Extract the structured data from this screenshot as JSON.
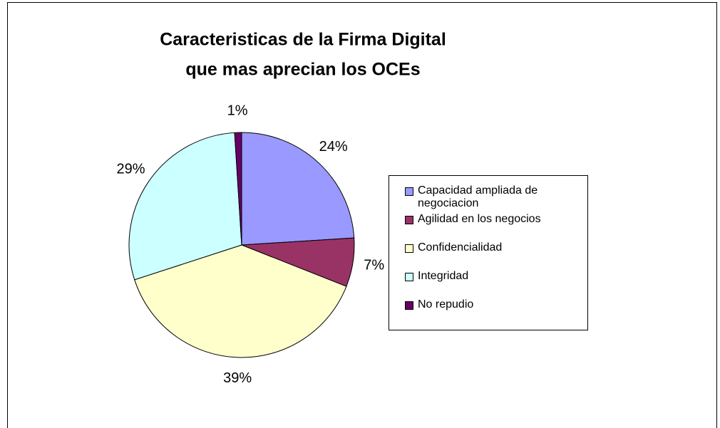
{
  "chart_data": {
    "type": "pie",
    "title": [
      "Caracteristicas de la Firma Digital",
      "que mas aprecian los OCEs"
    ],
    "categories": [
      "Capacidad ampliada de negociacion",
      "Agilidad en los negocios",
      "Confidencialidad",
      "Integridad",
      "No repudio"
    ],
    "values": [
      24,
      7,
      39,
      29,
      1
    ],
    "value_labels": [
      "24%",
      "7%",
      "39%",
      "29%",
      "1%"
    ],
    "colors": [
      "#9999ff",
      "#993366",
      "#ffffcc",
      "#ccffff",
      "#660066"
    ],
    "legend": "right"
  }
}
